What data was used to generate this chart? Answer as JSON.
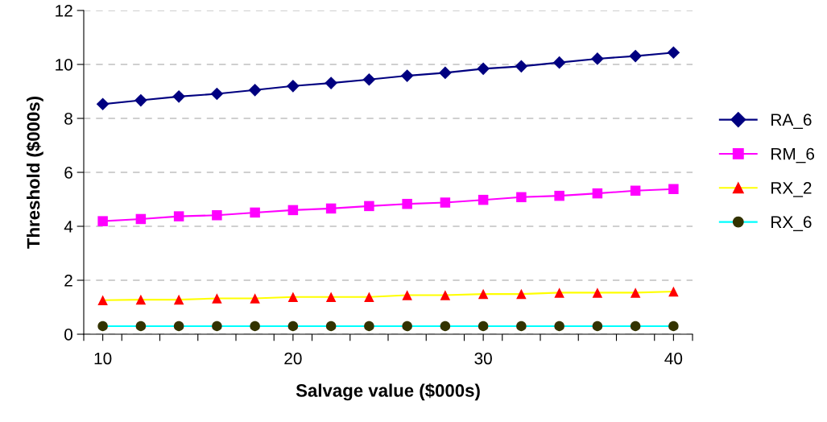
{
  "chart_data": {
    "type": "line",
    "xlabel": "Salvage value ($000s)",
    "ylabel": "Threshold ($000s)",
    "x": [
      10,
      12,
      14,
      16,
      18,
      20,
      22,
      24,
      26,
      28,
      30,
      32,
      34,
      36,
      38,
      40
    ],
    "xlim": [
      9,
      41
    ],
    "xticks": [
      {
        "value": 9,
        "label": null
      },
      {
        "value": 10,
        "label": "10"
      },
      {
        "value": 11,
        "label": null
      },
      {
        "value": 13,
        "label": null
      },
      {
        "value": 15,
        "label": null
      },
      {
        "value": 17,
        "label": null
      },
      {
        "value": 19,
        "label": null
      },
      {
        "value": 20,
        "label": "20"
      },
      {
        "value": 21,
        "label": null
      },
      {
        "value": 23,
        "label": null
      },
      {
        "value": 25,
        "label": null
      },
      {
        "value": 27,
        "label": null
      },
      {
        "value": 29,
        "label": null
      },
      {
        "value": 30,
        "label": "30"
      },
      {
        "value": 31,
        "label": null
      },
      {
        "value": 33,
        "label": null
      },
      {
        "value": 35,
        "label": null
      },
      {
        "value": 37,
        "label": null
      },
      {
        "value": 39,
        "label": null
      },
      {
        "value": 40,
        "label": "40"
      },
      {
        "value": 41,
        "label": null
      }
    ],
    "ylim": [
      0,
      12
    ],
    "yticks": [
      0,
      2,
      4,
      6,
      8,
      10,
      12
    ],
    "grid": "y",
    "legend": "right",
    "series": [
      {
        "name": "RA_6",
        "color": "#000080",
        "marker": "diamond",
        "colors": [
          "#000080",
          "#000080",
          "#000080",
          "#000080",
          "#000080",
          "#000080",
          "#000080",
          "#000080",
          "#000080",
          "#000080",
          "#000080",
          "#000080",
          "#000080",
          "#000080",
          "#000080",
          "#000080"
        ],
        "values": [
          8.53,
          8.67,
          8.81,
          8.91,
          9.05,
          9.2,
          9.31,
          9.44,
          9.58,
          9.69,
          9.84,
          9.93,
          10.07,
          10.21,
          10.31,
          10.44
        ]
      },
      {
        "name": "RM_6",
        "color": "#ff00ff",
        "marker": "square",
        "colors": [
          "#ff00ff",
          "#ff00ff",
          "#ff00ff",
          "#ff00ff",
          "#ff00ff",
          "#ff00ff",
          "#ff00ff",
          "#ff00ff",
          "#ff00ff",
          "#ff00ff",
          "#ff00ff",
          "#ff00ff",
          "#ff00ff",
          "#ff00ff",
          "#ff00ff",
          "#ff00ff"
        ],
        "values": [
          4.19,
          4.27,
          4.37,
          4.41,
          4.51,
          4.6,
          4.66,
          4.75,
          4.83,
          4.88,
          4.98,
          5.08,
          5.13,
          5.22,
          5.32,
          5.38
        ]
      },
      {
        "name": "RX_2",
        "color": "#ffff00",
        "marker": "triangle",
        "colors": [
          "#ff0000",
          "#ff0000",
          "#ff0000",
          "#ff0000",
          "#ff0000",
          "#ff0000",
          "#ff0000",
          "#ff0000",
          "#ff0000",
          "#ff0000",
          "#ff0000",
          "#ff0000",
          "#ff0000",
          "#ff0000",
          "#ff0000",
          "#ff0000"
        ],
        "values": [
          1.26,
          1.28,
          1.28,
          1.33,
          1.33,
          1.38,
          1.38,
          1.38,
          1.45,
          1.45,
          1.49,
          1.49,
          1.54,
          1.54,
          1.54,
          1.58
        ]
      },
      {
        "name": "RX_6",
        "color": "#00ffff",
        "marker": "circle",
        "colors": [
          "#333300",
          "#333300",
          "#333300",
          "#333300",
          "#333300",
          "#333300",
          "#333300",
          "#333300",
          "#333300",
          "#333300",
          "#333300",
          "#333300",
          "#333300",
          "#333300",
          "#333300",
          "#333300"
        ],
        "values": [
          0.3,
          0.3,
          0.3,
          0.3,
          0.3,
          0.3,
          0.3,
          0.3,
          0.3,
          0.3,
          0.3,
          0.3,
          0.3,
          0.3,
          0.3,
          0.3
        ]
      }
    ]
  }
}
